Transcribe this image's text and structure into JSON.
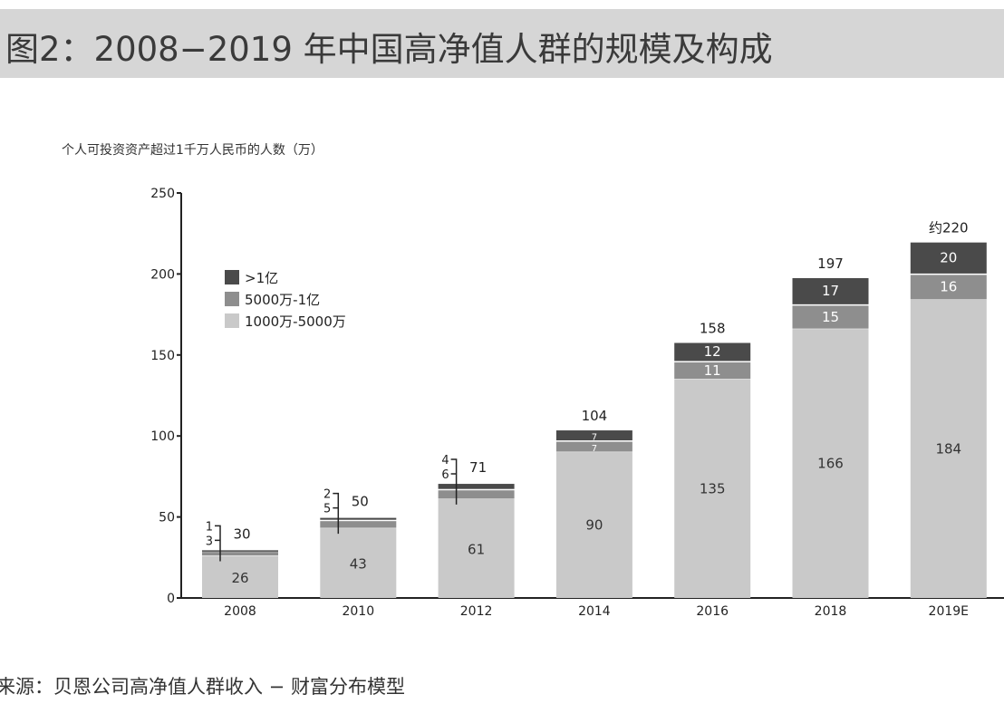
{
  "header": {
    "title": "图2：2008−2019 年中国高净值人群的规模及构成"
  },
  "source": "来源：贝恩公司高净值人群收入 − 财富分布模型",
  "chart_data": {
    "type": "bar",
    "stacked": true,
    "title": "",
    "ylabel": "个人可投资资产超过1千万人民币的人数（万）",
    "xlabel": "",
    "ylim": [
      0,
      250
    ],
    "yticks": [
      0,
      50,
      100,
      150,
      200,
      250
    ],
    "grid": false,
    "legend_position": "top-left",
    "categories": [
      "2008",
      "2010",
      "2012",
      "2014",
      "2016",
      "2018",
      "2019E"
    ],
    "series": [
      {
        "name": "1000万-5000万",
        "color": "#c9c9c9",
        "values": [
          26,
          43,
          61,
          90,
          135,
          166,
          184
        ]
      },
      {
        "name": "5000万-1亿",
        "color": "#8e8e8e",
        "values": [
          3,
          5,
          6,
          7,
          11,
          15,
          16
        ]
      },
      {
        "name": ">1亿",
        "color": "#4a4a4a",
        "values": [
          1,
          2,
          4,
          7,
          12,
          17,
          20
        ]
      }
    ],
    "totals": [
      "30",
      "50",
      "71",
      "104",
      "158",
      "197",
      "约220"
    ]
  }
}
